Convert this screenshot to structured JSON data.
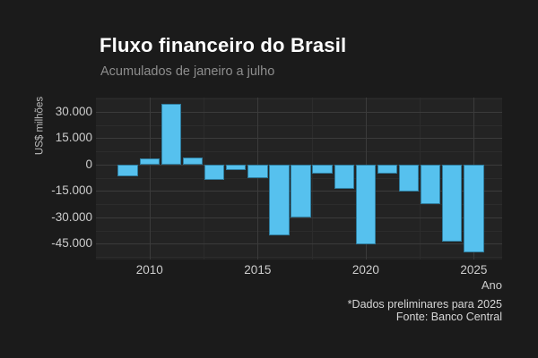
{
  "header": {
    "title": "Fluxo financeiro do Brasil",
    "subtitle": "Acumulados de janeiro a julho"
  },
  "axes": {
    "x_title": "Ano",
    "y_title": "US$ milhões"
  },
  "footer": {
    "note": "*Dados preliminares para 2025",
    "source": "Fonte: Banco Central"
  },
  "colors": {
    "background": "#1b1b1b",
    "panel_background": "#232323",
    "bar_fill": "#56c1ee",
    "grid_major": "#3b3b3b",
    "grid_minor": "#2c2c2c",
    "title_text": "#ffffff",
    "subtitle_text": "#8e8e8e",
    "axis_text": "#cccccc"
  },
  "chart_data": {
    "type": "bar",
    "title": "Fluxo financeiro do Brasil",
    "subtitle": "Acumulados de janeiro a julho",
    "xlabel": "Ano",
    "ylabel": "US$ milhões",
    "categories": [
      2009,
      2010,
      2011,
      2012,
      2013,
      2014,
      2015,
      2016,
      2017,
      2018,
      2019,
      2020,
      2021,
      2022,
      2023,
      2024,
      2025
    ],
    "values": [
      -6500,
      3500,
      34500,
      4000,
      -8500,
      -3000,
      -7500,
      -40000,
      -30000,
      -5000,
      -14000,
      -45500,
      -5000,
      -15500,
      -22500,
      -43500,
      -50000
    ],
    "bar_color": "#56c1ee",
    "grid": "on",
    "legend": "none",
    "xlim": [
      2007.52,
      2026.31
    ],
    "ylim": [
      -53900,
      38100
    ],
    "yticks": [
      30000,
      15000,
      0,
      -15000,
      -30000,
      -45000
    ],
    "ytick_labels": [
      "30.000",
      "15.000",
      "0",
      "-15.000",
      "-30.000",
      "-45.000"
    ],
    "yticks_minor": [
      37500,
      22500,
      7500,
      -7500,
      -22500,
      -37500,
      -52500
    ],
    "xticks": [
      2010,
      2015,
      2020,
      2025
    ],
    "xtick_labels": [
      "2010",
      "2015",
      "2020",
      "2025"
    ],
    "xticks_minor": [
      2012.5,
      2017.5,
      2022.5
    ],
    "annotations": [
      "*Dados preliminares para 2025",
      "Fonte: Banco Central"
    ]
  }
}
